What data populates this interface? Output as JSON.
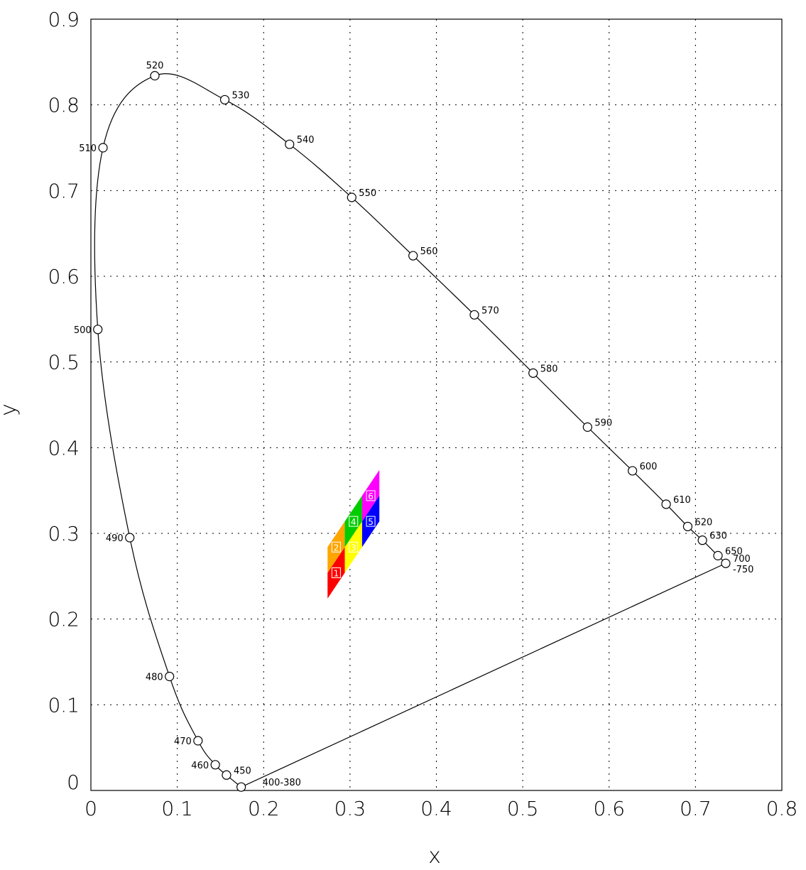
{
  "chart_data": {
    "type": "scatter",
    "title": "",
    "xlabel": "x",
    "ylabel": "y",
    "xlim": [
      0,
      0.8
    ],
    "ylim": [
      0,
      0.9
    ],
    "grid": true,
    "x_ticks": [
      "0",
      "0.1",
      "0.2",
      "0.3",
      "0.4",
      "0.5",
      "0.6",
      "0.7",
      "0.8"
    ],
    "y_ticks": [
      "0",
      "0.1",
      "0.2",
      "0.3",
      "0.4",
      "0.5",
      "0.6",
      "0.7",
      "0.8",
      "0.9"
    ],
    "spectral_locus": {
      "name": "spectral locus",
      "points": [
        {
          "label": "400-380",
          "x": 0.174,
          "y": 0.004
        },
        {
          "label": "450",
          "x": 0.157,
          "y": 0.018
        },
        {
          "label": "460",
          "x": 0.144,
          "y": 0.03
        },
        {
          "label": "470",
          "x": 0.124,
          "y": 0.058
        },
        {
          "label": "480",
          "x": 0.091,
          "y": 0.133
        },
        {
          "label": "490",
          "x": 0.045,
          "y": 0.295
        },
        {
          "label": "500",
          "x": 0.008,
          "y": 0.538
        },
        {
          "label": "510",
          "x": 0.014,
          "y": 0.75
        },
        {
          "label": "520",
          "x": 0.074,
          "y": 0.834
        },
        {
          "label": "530",
          "x": 0.155,
          "y": 0.806
        },
        {
          "label": "540",
          "x": 0.23,
          "y": 0.754
        },
        {
          "label": "550",
          "x": 0.302,
          "y": 0.692
        },
        {
          "label": "560",
          "x": 0.373,
          "y": 0.624
        },
        {
          "label": "570",
          "x": 0.444,
          "y": 0.555
        },
        {
          "label": "580",
          "x": 0.512,
          "y": 0.487
        },
        {
          "label": "590",
          "x": 0.575,
          "y": 0.424
        },
        {
          "label": "600",
          "x": 0.627,
          "y": 0.373
        },
        {
          "label": "610",
          "x": 0.666,
          "y": 0.334
        },
        {
          "label": "620",
          "x": 0.691,
          "y": 0.308
        },
        {
          "label": "630",
          "x": 0.708,
          "y": 0.292
        },
        {
          "label": "650",
          "x": 0.726,
          "y": 0.274
        },
        {
          "label": "700\n-750",
          "x": 0.735,
          "y": 0.265
        }
      ],
      "line_color": "#000000"
    },
    "patches": [
      {
        "label": "1",
        "color": "#ff0000",
        "x": [
          0.274,
          0.294
        ],
        "y_bottom": [
          0.224,
          0.254
        ],
        "y_top": [
          0.254,
          0.284
        ]
      },
      {
        "label": "2",
        "color": "#ffa500",
        "x": [
          0.274,
          0.294
        ],
        "y_bottom": [
          0.254,
          0.284
        ],
        "y_top": [
          0.284,
          0.314
        ]
      },
      {
        "label": "3",
        "color": "#ffff00",
        "x": [
          0.294,
          0.314
        ],
        "y_bottom": [
          0.254,
          0.284
        ],
        "y_top": [
          0.284,
          0.314
        ]
      },
      {
        "label": "4",
        "color": "#00cc00",
        "x": [
          0.294,
          0.314
        ],
        "y_bottom": [
          0.284,
          0.314
        ],
        "y_top": [
          0.314,
          0.344
        ]
      },
      {
        "label": "5",
        "color": "#0000ff",
        "x": [
          0.314,
          0.334
        ],
        "y_bottom": [
          0.284,
          0.314
        ],
        "y_top": [
          0.314,
          0.344
        ]
      },
      {
        "label": "6",
        "color": "#ff00ff",
        "x": [
          0.314,
          0.334
        ],
        "y_bottom": [
          0.314,
          0.344
        ],
        "y_top": [
          0.344,
          0.374
        ]
      }
    ]
  }
}
